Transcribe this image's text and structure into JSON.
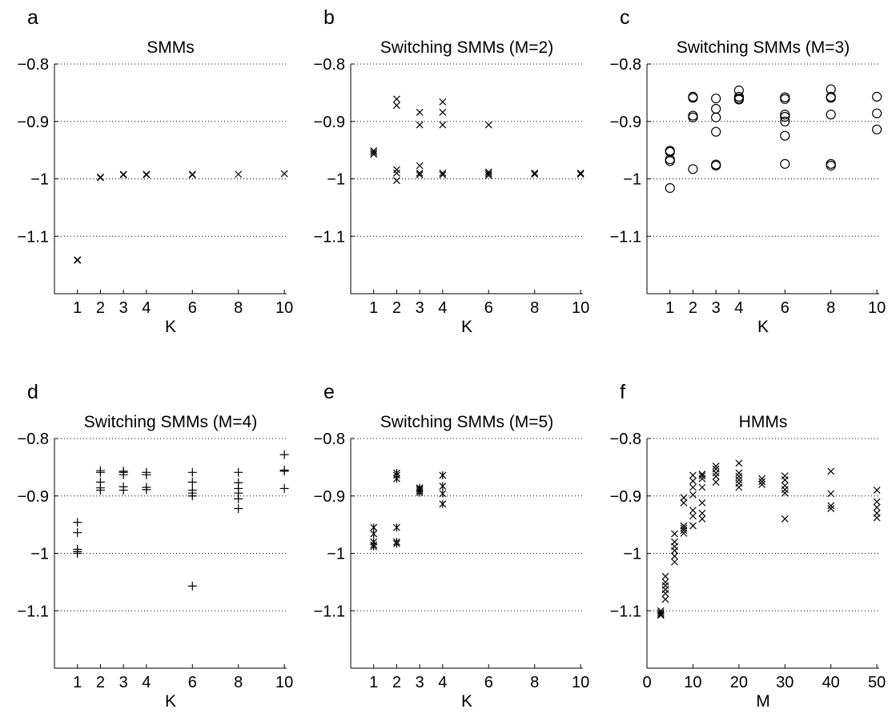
{
  "figure_letters": [
    "a",
    "b",
    "c",
    "d",
    "e",
    "f"
  ],
  "chart_data": [
    {
      "type": "scatter",
      "panel": "a",
      "title": "SMMs",
      "xlabel": "K",
      "ylabel": "",
      "marker": "x",
      "xticks": [
        1,
        2,
        3,
        4,
        6,
        8,
        10
      ],
      "xtick_labels": [
        "1",
        "2",
        "3",
        "4",
        "6",
        "8",
        "10"
      ],
      "xlim": [
        0,
        10.1
      ],
      "yticks": [
        -0.8,
        -0.9,
        -1.0,
        -1.1
      ],
      "ytick_labels": [
        "−0.8",
        "−0.9",
        "−1",
        "−1.1"
      ],
      "ylim": [
        -1.2,
        -0.8
      ],
      "grid": "y-dotted",
      "points": [
        [
          1,
          -1.141
        ],
        [
          1,
          -1.142
        ],
        [
          2,
          -0.997
        ],
        [
          2,
          -0.998
        ],
        [
          3,
          -0.992
        ],
        [
          3,
          -0.993
        ],
        [
          4,
          -0.992
        ],
        [
          4,
          -0.993
        ],
        [
          6,
          -0.992
        ],
        [
          6,
          -0.993
        ],
        [
          8,
          -0.992
        ],
        [
          10,
          -0.991
        ]
      ]
    },
    {
      "type": "scatter",
      "panel": "b",
      "title": "Switching SMMs (M=2)",
      "xlabel": "K",
      "ylabel": "",
      "marker": "x",
      "xticks": [
        1,
        2,
        3,
        4,
        6,
        8,
        10
      ],
      "xtick_labels": [
        "1",
        "2",
        "3",
        "4",
        "6",
        "8",
        "10"
      ],
      "xlim": [
        0,
        10.1
      ],
      "yticks": [
        -0.8,
        -0.9,
        -1.0,
        -1.1
      ],
      "ytick_labels": [
        "−0.8",
        "−0.9",
        "−1",
        "−1.1"
      ],
      "ylim": [
        -1.2,
        -0.8
      ],
      "grid": "y-dotted",
      "points": [
        [
          1,
          -0.951
        ],
        [
          1,
          -0.954
        ],
        [
          1,
          -0.957
        ],
        [
          2,
          -0.861
        ],
        [
          2,
          -0.872
        ],
        [
          2,
          -0.984
        ],
        [
          2,
          -0.99
        ],
        [
          2,
          -1.003
        ],
        [
          3,
          -0.884
        ],
        [
          3,
          -0.906
        ],
        [
          3,
          -0.977
        ],
        [
          3,
          -0.99
        ],
        [
          3,
          -0.993
        ],
        [
          4,
          -0.866
        ],
        [
          4,
          -0.884
        ],
        [
          4,
          -0.906
        ],
        [
          4,
          -0.99
        ],
        [
          4,
          -0.993
        ],
        [
          6,
          -0.906
        ],
        [
          6,
          -0.988
        ],
        [
          6,
          -0.991
        ],
        [
          6,
          -0.994
        ],
        [
          8,
          -0.99
        ],
        [
          8,
          -0.992
        ],
        [
          10,
          -0.99
        ],
        [
          10,
          -0.992
        ]
      ]
    },
    {
      "type": "scatter",
      "panel": "c",
      "title": "Switching SMMs (M=3)",
      "xlabel": "K",
      "ylabel": "",
      "marker": "o",
      "xticks": [
        1,
        2,
        3,
        4,
        6,
        8,
        10
      ],
      "xtick_labels": [
        "1",
        "2",
        "3",
        "4",
        "6",
        "8",
        "10"
      ],
      "xlim": [
        0,
        10.1
      ],
      "yticks": [
        -0.8,
        -0.9,
        -1.0,
        -1.1
      ],
      "ytick_labels": [
        "−0.8",
        "−0.9",
        "−1",
        "−1.1"
      ],
      "ylim": [
        -1.2,
        -0.8
      ],
      "grid": "y-dotted",
      "points": [
        [
          1,
          -0.951
        ],
        [
          1,
          -0.953
        ],
        [
          1,
          -0.966
        ],
        [
          1,
          -0.969
        ],
        [
          1,
          -1.016
        ],
        [
          2,
          -0.857
        ],
        [
          2,
          -0.859
        ],
        [
          2,
          -0.89
        ],
        [
          2,
          -0.893
        ],
        [
          2,
          -0.983
        ],
        [
          3,
          -0.86
        ],
        [
          3,
          -0.878
        ],
        [
          3,
          -0.893
        ],
        [
          3,
          -0.918
        ],
        [
          3,
          -0.975
        ],
        [
          3,
          -0.977
        ],
        [
          4,
          -0.846
        ],
        [
          4,
          -0.857
        ],
        [
          4,
          -0.86
        ],
        [
          4,
          -0.862
        ],
        [
          6,
          -0.858
        ],
        [
          6,
          -0.861
        ],
        [
          6,
          -0.888
        ],
        [
          6,
          -0.892
        ],
        [
          6,
          -0.9
        ],
        [
          6,
          -0.925
        ],
        [
          6,
          -0.974
        ],
        [
          8,
          -0.844
        ],
        [
          8,
          -0.857
        ],
        [
          8,
          -0.859
        ],
        [
          8,
          -0.888
        ],
        [
          8,
          -0.974
        ],
        [
          8,
          -0.977
        ],
        [
          10,
          -0.857
        ],
        [
          10,
          -0.886
        ],
        [
          10,
          -0.914
        ]
      ]
    },
    {
      "type": "scatter",
      "panel": "d",
      "title": "Switching SMMs (M=4)",
      "xlabel": "K",
      "ylabel": "",
      "marker": "+",
      "xticks": [
        1,
        2,
        3,
        4,
        6,
        8,
        10
      ],
      "xtick_labels": [
        "1",
        "2",
        "3",
        "4",
        "6",
        "8",
        "10"
      ],
      "xlim": [
        0,
        10.1
      ],
      "yticks": [
        -0.8,
        -0.9,
        -1.0,
        -1.1
      ],
      "ytick_labels": [
        "−0.8",
        "−0.9",
        "−1",
        "−1.1"
      ],
      "ylim": [
        -1.2,
        -0.8
      ],
      "grid": "y-dotted",
      "points": [
        [
          1,
          -0.946
        ],
        [
          1,
          -0.964
        ],
        [
          1,
          -0.993
        ],
        [
          1,
          -0.997
        ],
        [
          1,
          -1.0
        ],
        [
          2,
          -0.856
        ],
        [
          2,
          -0.859
        ],
        [
          2,
          -0.876
        ],
        [
          2,
          -0.886
        ],
        [
          2,
          -0.89
        ],
        [
          3,
          -0.857
        ],
        [
          3,
          -0.859
        ],
        [
          3,
          -0.863
        ],
        [
          3,
          -0.884
        ],
        [
          3,
          -0.89
        ],
        [
          4,
          -0.859
        ],
        [
          4,
          -0.863
        ],
        [
          4,
          -0.885
        ],
        [
          4,
          -0.889
        ],
        [
          6,
          -0.859
        ],
        [
          6,
          -0.876
        ],
        [
          6,
          -0.89
        ],
        [
          6,
          -0.895
        ],
        [
          6,
          -0.9
        ],
        [
          6,
          -1.057
        ],
        [
          8,
          -0.859
        ],
        [
          8,
          -0.877
        ],
        [
          8,
          -0.887
        ],
        [
          8,
          -0.895
        ],
        [
          8,
          -0.905
        ],
        [
          8,
          -0.922
        ],
        [
          10,
          -0.828
        ],
        [
          10,
          -0.855
        ],
        [
          10,
          -0.857
        ],
        [
          10,
          -0.887
        ]
      ]
    },
    {
      "type": "scatter",
      "panel": "e",
      "title": "Switching SMMs (M=5)",
      "xlabel": "K",
      "ylabel": "",
      "marker": "*",
      "xticks": [
        1,
        2,
        3,
        4,
        6,
        8,
        10
      ],
      "xtick_labels": [
        "1",
        "2",
        "3",
        "4",
        "6",
        "8",
        "10"
      ],
      "xlim": [
        0,
        10.1
      ],
      "yticks": [
        -0.8,
        -0.9,
        -1.0,
        -1.1
      ],
      "ytick_labels": [
        "−0.8",
        "−0.9",
        "−1",
        "−1.1"
      ],
      "ylim": [
        -1.2,
        -0.8
      ],
      "grid": "y-dotted",
      "points": [
        [
          1,
          -0.955
        ],
        [
          1,
          -0.966
        ],
        [
          1,
          -0.98
        ],
        [
          1,
          -0.985
        ],
        [
          1,
          -0.988
        ],
        [
          2,
          -0.86
        ],
        [
          2,
          -0.864
        ],
        [
          2,
          -0.87
        ],
        [
          2,
          -0.955
        ],
        [
          2,
          -0.98
        ],
        [
          2,
          -0.983
        ],
        [
          3,
          -0.886
        ],
        [
          3,
          -0.888
        ],
        [
          3,
          -0.891
        ],
        [
          3,
          -0.894
        ],
        [
          4,
          -0.864
        ],
        [
          4,
          -0.883
        ],
        [
          4,
          -0.896
        ],
        [
          4,
          -0.914
        ]
      ]
    },
    {
      "type": "scatter",
      "panel": "f",
      "title": "HMMs",
      "xlabel": "M",
      "ylabel": "",
      "marker": "x",
      "xticks": [
        0,
        10,
        20,
        30,
        40,
        50
      ],
      "xtick_labels": [
        "0",
        "10",
        "20",
        "30",
        "40",
        "50"
      ],
      "xlim": [
        0,
        50.5
      ],
      "yticks": [
        -0.8,
        -0.9,
        -1.0,
        -1.1
      ],
      "ytick_labels": [
        "−0.8",
        "−0.9",
        "−1",
        "−1.1"
      ],
      "ylim": [
        -1.2,
        -0.8
      ],
      "grid": "y-dotted",
      "points": [
        [
          3,
          -1.1
        ],
        [
          3,
          -1.103
        ],
        [
          3,
          -1.106
        ],
        [
          3,
          -1.108
        ],
        [
          4,
          -1.04
        ],
        [
          4,
          -1.05
        ],
        [
          4,
          -1.056
        ],
        [
          4,
          -1.063
        ],
        [
          4,
          -1.07
        ],
        [
          4,
          -1.08
        ],
        [
          6,
          -0.966
        ],
        [
          6,
          -0.98
        ],
        [
          6,
          -0.988
        ],
        [
          6,
          -0.995
        ],
        [
          6,
          -1.005
        ],
        [
          6,
          -1.015
        ],
        [
          8,
          -0.903
        ],
        [
          8,
          -0.912
        ],
        [
          8,
          -0.952
        ],
        [
          8,
          -0.956
        ],
        [
          8,
          -0.96
        ],
        [
          8,
          -0.965
        ],
        [
          10,
          -0.864
        ],
        [
          10,
          -0.874
        ],
        [
          10,
          -0.885
        ],
        [
          10,
          -0.898
        ],
        [
          10,
          -0.925
        ],
        [
          10,
          -0.935
        ],
        [
          10,
          -0.952
        ],
        [
          12,
          -0.862
        ],
        [
          12,
          -0.865
        ],
        [
          12,
          -0.87
        ],
        [
          12,
          -0.885
        ],
        [
          12,
          -0.912
        ],
        [
          12,
          -0.93
        ],
        [
          12,
          -0.94
        ],
        [
          15,
          -0.848
        ],
        [
          15,
          -0.853
        ],
        [
          15,
          -0.86
        ],
        [
          15,
          -0.866
        ],
        [
          15,
          -0.876
        ],
        [
          20,
          -0.843
        ],
        [
          20,
          -0.86
        ],
        [
          20,
          -0.866
        ],
        [
          20,
          -0.872
        ],
        [
          20,
          -0.878
        ],
        [
          20,
          -0.885
        ],
        [
          25,
          -0.87
        ],
        [
          25,
          -0.875
        ],
        [
          25,
          -0.88
        ],
        [
          30,
          -0.865
        ],
        [
          30,
          -0.872
        ],
        [
          30,
          -0.882
        ],
        [
          30,
          -0.889
        ],
        [
          30,
          -0.895
        ],
        [
          30,
          -0.94
        ],
        [
          40,
          -0.857
        ],
        [
          40,
          -0.896
        ],
        [
          40,
          -0.917
        ],
        [
          40,
          -0.922
        ],
        [
          50,
          -0.89
        ],
        [
          50,
          -0.91
        ],
        [
          50,
          -0.92
        ],
        [
          50,
          -0.93
        ],
        [
          50,
          -0.938
        ]
      ]
    }
  ]
}
